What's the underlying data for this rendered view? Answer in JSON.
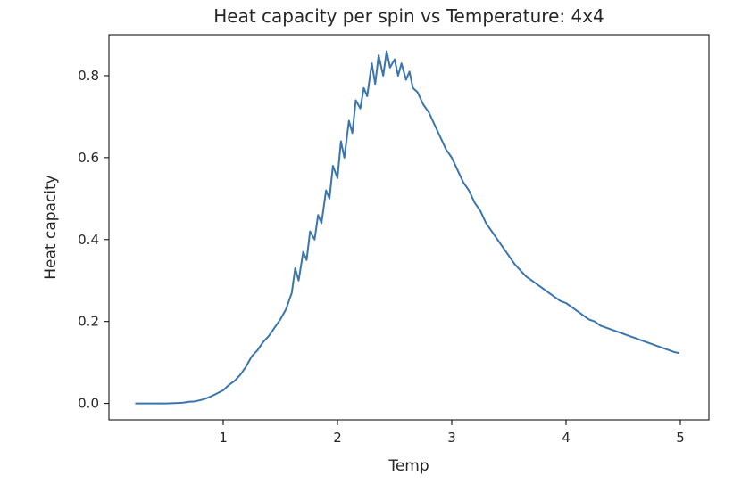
{
  "chart_data": {
    "type": "line",
    "title": "Heat capacity per spin vs Temperature: 4x4",
    "xlabel": "Temp",
    "ylabel": "Heat capacity",
    "xlim": [
      0.0,
      5.25
    ],
    "ylim": [
      -0.04,
      0.9
    ],
    "x_ticks": [
      1,
      2,
      3,
      4,
      5
    ],
    "y_ticks": [
      0.0,
      0.2,
      0.4,
      0.6,
      0.8
    ],
    "x_tick_labels": [
      "1",
      "2",
      "3",
      "4",
      "5"
    ],
    "y_tick_labels": [
      "0.0",
      "0.2",
      "0.4",
      "0.6",
      "0.8"
    ],
    "grid": false,
    "line_color": "#3a75af",
    "series": [
      {
        "x": [
          0.23,
          0.3,
          0.4,
          0.5,
          0.6,
          0.65,
          0.7,
          0.75,
          0.8,
          0.85,
          0.9,
          0.95,
          1.0,
          1.05,
          1.1,
          1.15,
          1.2,
          1.25,
          1.3,
          1.35,
          1.4,
          1.45,
          1.5,
          1.55,
          1.6,
          1.63,
          1.66,
          1.7,
          1.73,
          1.76,
          1.8,
          1.83,
          1.86,
          1.9,
          1.93,
          1.96,
          2.0,
          2.03,
          2.06,
          2.1,
          2.13,
          2.16,
          2.2,
          2.23,
          2.26,
          2.3,
          2.33,
          2.36,
          2.4,
          2.43,
          2.46,
          2.5,
          2.53,
          2.56,
          2.6,
          2.63,
          2.66,
          2.7,
          2.75,
          2.8,
          2.85,
          2.9,
          2.95,
          3.0,
          3.05,
          3.1,
          3.15,
          3.2,
          3.25,
          3.3,
          3.35,
          3.4,
          3.45,
          3.5,
          3.55,
          3.6,
          3.65,
          3.7,
          3.75,
          3.8,
          3.85,
          3.9,
          3.95,
          4.0,
          4.05,
          4.1,
          4.15,
          4.2,
          4.25,
          4.3,
          4.35,
          4.4,
          4.45,
          4.5,
          4.55,
          4.6,
          4.65,
          4.7,
          4.75,
          4.8,
          4.85,
          4.9,
          4.95,
          4.99
        ],
        "y": [
          0.0,
          0.0,
          0.0,
          0.0,
          0.001,
          0.002,
          0.004,
          0.005,
          0.008,
          0.012,
          0.018,
          0.025,
          0.032,
          0.045,
          0.055,
          0.07,
          0.09,
          0.115,
          0.13,
          0.15,
          0.165,
          0.185,
          0.205,
          0.23,
          0.27,
          0.33,
          0.3,
          0.37,
          0.35,
          0.42,
          0.4,
          0.46,
          0.44,
          0.52,
          0.5,
          0.58,
          0.55,
          0.64,
          0.6,
          0.69,
          0.66,
          0.74,
          0.72,
          0.77,
          0.75,
          0.83,
          0.78,
          0.85,
          0.8,
          0.86,
          0.82,
          0.84,
          0.8,
          0.83,
          0.79,
          0.81,
          0.77,
          0.76,
          0.73,
          0.71,
          0.68,
          0.65,
          0.62,
          0.6,
          0.57,
          0.54,
          0.52,
          0.49,
          0.47,
          0.44,
          0.42,
          0.4,
          0.38,
          0.36,
          0.34,
          0.325,
          0.31,
          0.3,
          0.29,
          0.28,
          0.27,
          0.26,
          0.25,
          0.245,
          0.235,
          0.225,
          0.215,
          0.205,
          0.2,
          0.19,
          0.185,
          0.18,
          0.175,
          0.17,
          0.165,
          0.16,
          0.155,
          0.15,
          0.145,
          0.14,
          0.135,
          0.13,
          0.125,
          0.123
        ]
      }
    ]
  }
}
